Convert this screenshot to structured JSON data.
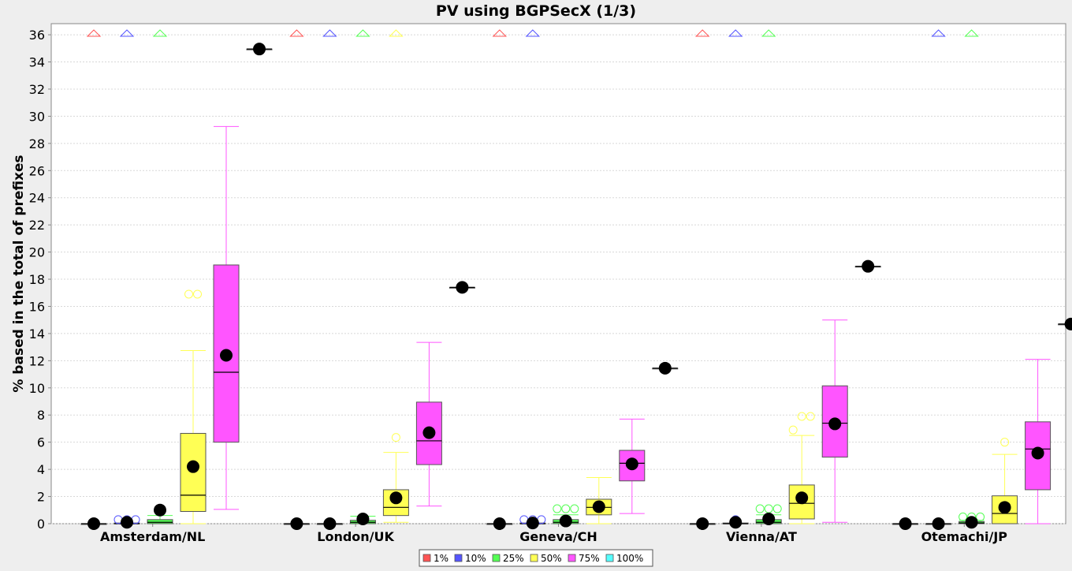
{
  "chart_data": {
    "type": "boxplot",
    "title": "PV using BGPSecX  (1/3)",
    "xlabel": "",
    "ylabel": "% based in the total of prefixes",
    "ylim": [
      0,
      36.5
    ],
    "yticks": [
      0,
      2,
      4,
      6,
      8,
      10,
      12,
      14,
      16,
      18,
      20,
      22,
      24,
      26,
      28,
      30,
      32,
      34,
      36
    ],
    "grid": true,
    "legend_position": "bottom",
    "categories": [
      "Amsterdam/NL",
      "London/UK",
      "Geneva/CH",
      "Vienna/AT",
      "Otemachi/JP"
    ],
    "series": [
      {
        "name": "1%",
        "color": "#ff5555",
        "boxes": [
          {
            "q1": 0,
            "median": 0,
            "q3": 0,
            "whisker_low": 0,
            "whisker_high": 0,
            "mean": 0,
            "outliers": [],
            "far_outlier_marker": true
          },
          {
            "q1": 0,
            "median": 0,
            "q3": 0,
            "whisker_low": 0,
            "whisker_high": 0,
            "mean": 0,
            "outliers": [],
            "far_outlier_marker": true
          },
          {
            "q1": 0,
            "median": 0,
            "q3": 0,
            "whisker_low": 0,
            "whisker_high": 0,
            "mean": 0,
            "outliers": [],
            "far_outlier_marker": true
          },
          {
            "q1": 0,
            "median": 0,
            "q3": 0,
            "whisker_low": 0,
            "whisker_high": 0,
            "mean": 0,
            "outliers": [],
            "far_outlier_marker": true
          },
          {
            "q1": 0,
            "median": 0,
            "q3": 0,
            "whisker_low": 0,
            "whisker_high": 0,
            "mean": 0,
            "outliers": [],
            "far_outlier_marker": false
          }
        ]
      },
      {
        "name": "10%",
        "color": "#5555ff",
        "boxes": [
          {
            "q1": 0,
            "median": 0,
            "q3": 0.05,
            "whisker_low": 0,
            "whisker_high": 0.05,
            "mean": 0.1,
            "outliers": [
              0.3,
              0.3,
              0.3
            ],
            "far_outlier_marker": true
          },
          {
            "q1": 0,
            "median": 0,
            "q3": 0,
            "whisker_low": 0,
            "whisker_high": 0,
            "mean": 0,
            "outliers": [],
            "far_outlier_marker": true
          },
          {
            "q1": 0,
            "median": 0,
            "q3": 0.05,
            "whisker_low": 0,
            "whisker_high": 0.05,
            "mean": 0.05,
            "outliers": [
              0.3,
              0.3,
              0.3
            ],
            "far_outlier_marker": true
          },
          {
            "q1": 0,
            "median": 0,
            "q3": 0.05,
            "whisker_low": 0,
            "whisker_high": 0.05,
            "mean": 0.1,
            "outliers": [
              0.3
            ],
            "far_outlier_marker": true
          },
          {
            "q1": 0,
            "median": 0,
            "q3": 0,
            "whisker_low": 0,
            "whisker_high": 0,
            "mean": 0,
            "outliers": [],
            "far_outlier_marker": true
          }
        ]
      },
      {
        "name": "25%",
        "color": "#55ff55",
        "boxes": [
          {
            "q1": 0,
            "median": 0.1,
            "q3": 0.3,
            "whisker_low": 0,
            "whisker_high": 0.6,
            "mean": 1.0,
            "outliers": [],
            "far_outlier_marker": true
          },
          {
            "q1": 0,
            "median": 0.1,
            "q3": 0.25,
            "whisker_low": 0,
            "whisker_high": 0.55,
            "mean": 0.35,
            "outliers": [],
            "far_outlier_marker": true
          },
          {
            "q1": 0,
            "median": 0.1,
            "q3": 0.3,
            "whisker_low": 0,
            "whisker_high": 0.65,
            "mean": 0.2,
            "outliers": [
              1.1,
              1.1,
              1.1
            ],
            "far_outlier_marker": false
          },
          {
            "q1": 0,
            "median": 0.1,
            "q3": 0.3,
            "whisker_low": 0,
            "whisker_high": 0.65,
            "mean": 0.35,
            "outliers": [
              1.1,
              1.1,
              1.1
            ],
            "far_outlier_marker": true
          },
          {
            "q1": 0,
            "median": 0.05,
            "q3": 0.15,
            "whisker_low": 0,
            "whisker_high": 0.25,
            "mean": 0.1,
            "outliers": [
              0.5,
              0.5,
              0.5
            ],
            "far_outlier_marker": true
          }
        ]
      },
      {
        "name": "50%",
        "color": "#ffff55",
        "boxes": [
          {
            "q1": 0.9,
            "median": 2.1,
            "q3": 6.65,
            "whisker_low": 0,
            "whisker_high": 12.75,
            "mean": 4.2,
            "outliers": [
              16.9,
              16.9
            ],
            "far_outlier_marker": false
          },
          {
            "q1": 0.6,
            "median": 1.2,
            "q3": 2.5,
            "whisker_low": 0.1,
            "whisker_high": 5.25,
            "mean": 1.9,
            "outliers": [
              6.35
            ],
            "far_outlier_marker": true
          },
          {
            "q1": 0.65,
            "median": 1.2,
            "q3": 1.8,
            "whisker_low": 0,
            "whisker_high": 3.4,
            "mean": 1.25,
            "outliers": [],
            "far_outlier_marker": false
          },
          {
            "q1": 0.35,
            "median": 1.5,
            "q3": 2.85,
            "whisker_low": 0,
            "whisker_high": 6.5,
            "mean": 1.9,
            "outliers": [
              6.9,
              7.9,
              7.9
            ],
            "far_outlier_marker": false
          },
          {
            "q1": 0,
            "median": 0.75,
            "q3": 2.05,
            "whisker_low": 0,
            "whisker_high": 5.1,
            "mean": 1.2,
            "outliers": [
              6.0
            ],
            "far_outlier_marker": false
          }
        ]
      },
      {
        "name": "75%",
        "color": "#ff55ff",
        "boxes": [
          {
            "q1": 6.0,
            "median": 11.15,
            "q3": 19.05,
            "whisker_low": 1.05,
            "whisker_high": 29.25,
            "mean": 12.4,
            "outliers": [],
            "far_outlier_marker": false
          },
          {
            "q1": 4.35,
            "median": 6.1,
            "q3": 8.95,
            "whisker_low": 1.3,
            "whisker_high": 13.35,
            "mean": 6.7,
            "outliers": [],
            "far_outlier_marker": false
          },
          {
            "q1": 3.15,
            "median": 4.45,
            "q3": 5.4,
            "whisker_low": 0.75,
            "whisker_high": 7.7,
            "mean": 4.4,
            "outliers": [],
            "far_outlier_marker": false
          },
          {
            "q1": 4.9,
            "median": 7.4,
            "q3": 10.15,
            "whisker_low": 0.1,
            "whisker_high": 15.0,
            "mean": 7.35,
            "outliers": [],
            "far_outlier_marker": false
          },
          {
            "q1": 2.5,
            "median": 5.5,
            "q3": 7.5,
            "whisker_low": 0,
            "whisker_high": 12.1,
            "mean": 5.2,
            "outliers": [],
            "far_outlier_marker": false
          }
        ]
      },
      {
        "name": "100%",
        "color": "#55ffff",
        "boxes": [
          {
            "q1": 34.95,
            "median": 34.95,
            "q3": 34.95,
            "whisker_low": 34.95,
            "whisker_high": 34.95,
            "mean": 34.95,
            "outliers": [],
            "far_outlier_marker": false
          },
          {
            "q1": 17.4,
            "median": 17.4,
            "q3": 17.4,
            "whisker_low": 17.4,
            "whisker_high": 17.4,
            "mean": 17.4,
            "outliers": [],
            "far_outlier_marker": false
          },
          {
            "q1": 11.45,
            "median": 11.45,
            "q3": 11.45,
            "whisker_low": 11.45,
            "whisker_high": 11.45,
            "mean": 11.45,
            "outliers": [],
            "far_outlier_marker": false
          },
          {
            "q1": 18.95,
            "median": 18.95,
            "q3": 18.95,
            "whisker_low": 18.95,
            "whisker_high": 18.95,
            "mean": 18.95,
            "outliers": [],
            "far_outlier_marker": false
          },
          {
            "q1": 14.7,
            "median": 14.7,
            "q3": 14.7,
            "whisker_low": 14.7,
            "whisker_high": 14.7,
            "mean": 14.7,
            "outliers": [],
            "far_outlier_marker": false
          }
        ]
      }
    ]
  }
}
